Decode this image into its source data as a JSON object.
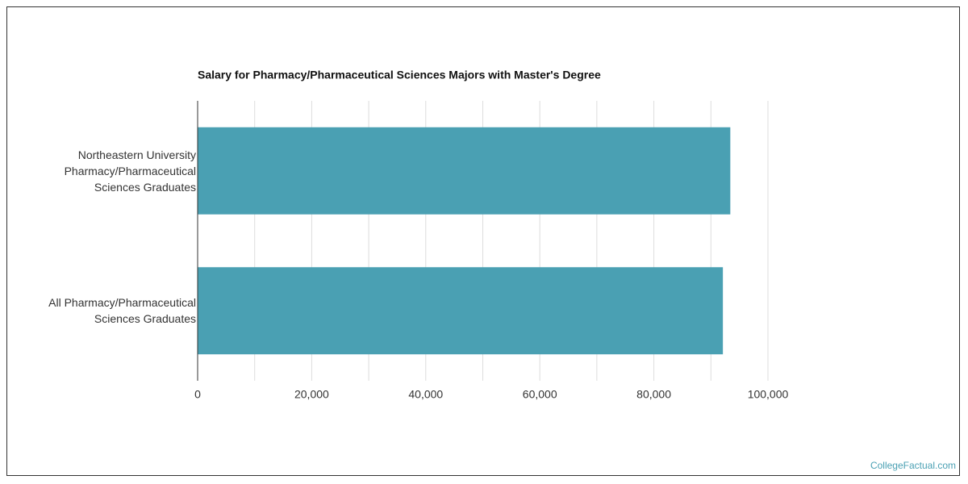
{
  "chart_data": {
    "type": "bar",
    "orientation": "horizontal",
    "title": "Salary for Pharmacy/Pharmaceutical Sciences Majors with Master's Degree",
    "categories": [
      "Northeastern University Pharmacy/Pharmaceutical Sciences Graduates",
      "All Pharmacy/Pharmaceutical Sciences Graduates"
    ],
    "values": [
      93400,
      92100
    ],
    "color": "#4aa0b3",
    "xlim": [
      0,
      100000
    ],
    "xticks": [
      0,
      {
        "value": 20000,
        "label": "20,000"
      },
      {
        "value": 40000,
        "label": "40,000"
      },
      {
        "value": 60000,
        "label": "60,000"
      },
      {
        "value": 80000,
        "label": "80,000"
      },
      {
        "value": 100000,
        "label": "100,000"
      }
    ],
    "x_minor_ticks": [
      10000,
      30000,
      50000,
      70000,
      90000
    ],
    "grid": true
  },
  "source": "CollegeFactual.com"
}
